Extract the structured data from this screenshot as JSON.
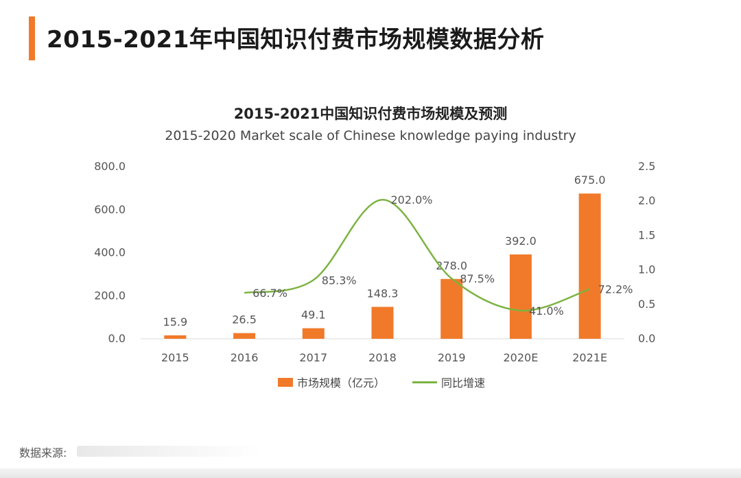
{
  "page": {
    "title": "2015-2021年中国知识付费市场规模数据分析",
    "source_label": "数据来源:",
    "accent_color": "#f07a2a"
  },
  "chart_data": {
    "type": "bar",
    "title": "2015-2021中国知识付费市场规模及预测",
    "subtitle": "2015-2020 Market scale of Chinese knowledge paying industry",
    "categories": [
      "2015",
      "2016",
      "2017",
      "2018",
      "2019",
      "2020E",
      "2021E"
    ],
    "series": [
      {
        "name": "市场规模（亿元）",
        "type": "bar",
        "axis": "left",
        "color": "#f07a2a",
        "values": [
          15.9,
          26.5,
          49.1,
          148.3,
          278.0,
          392.0,
          675.0
        ],
        "labels": [
          "15.9",
          "26.5",
          "49.1",
          "148.3",
          "278.0",
          "392.0",
          "675.0"
        ]
      },
      {
        "name": "同比增速",
        "type": "line",
        "smooth": true,
        "axis": "right",
        "color": "#7cb342",
        "values": [
          null,
          0.667,
          0.853,
          2.02,
          0.875,
          0.41,
          0.722
        ],
        "labels": [
          null,
          "66.7%",
          "85.3%",
          "202.0%",
          "87.5%",
          "41.0%",
          "72.2%"
        ]
      }
    ],
    "y_left": {
      "ylim": [
        0,
        800
      ],
      "ticks": [
        "0.0",
        "200.0",
        "400.0",
        "600.0",
        "800.0"
      ]
    },
    "y_right": {
      "ylim": [
        0,
        2.5
      ],
      "ticks": [
        "0.0",
        "0.5",
        "1.0",
        "1.5",
        "2.0",
        "2.5"
      ]
    },
    "grid": false,
    "legend_position": "bottom-center"
  }
}
